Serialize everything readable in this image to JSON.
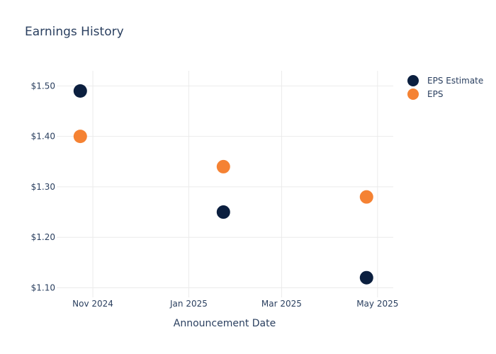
{
  "chart_data": {
    "type": "scatter",
    "title": "Earnings History",
    "xlabel": "Announcement Date",
    "ylabel": "",
    "x_ticks": [
      {
        "date": "2024-11-01",
        "label": "Nov 2024"
      },
      {
        "date": "2025-01-01",
        "label": "Jan 2025"
      },
      {
        "date": "2025-03-01",
        "label": "Mar 2025"
      },
      {
        "date": "2025-05-01",
        "label": "May 2025"
      }
    ],
    "y_ticks": [
      {
        "value": 1.1,
        "label": "$1.10"
      },
      {
        "value": 1.2,
        "label": "$1.20"
      },
      {
        "value": 1.3,
        "label": "$1.30"
      },
      {
        "value": 1.4,
        "label": "$1.40"
      },
      {
        "value": 1.5,
        "label": "$1.50"
      }
    ],
    "xlim": [
      "2024-10-09",
      "2025-05-11"
    ],
    "ylim": [
      1.081,
      1.53
    ],
    "grid": true,
    "legend_position": "top-right",
    "series": [
      {
        "name": "EPS Estimate",
        "color": "#0b1f3f",
        "points": [
          {
            "x": "2024-10-24",
            "y": 1.49
          },
          {
            "x": "2025-01-23",
            "y": 1.25
          },
          {
            "x": "2025-04-24",
            "y": 1.12
          }
        ]
      },
      {
        "name": "EPS",
        "color": "#f58233",
        "points": [
          {
            "x": "2024-10-24",
            "y": 1.4
          },
          {
            "x": "2025-01-23",
            "y": 1.34
          },
          {
            "x": "2025-04-24",
            "y": 1.28
          }
        ]
      }
    ]
  }
}
